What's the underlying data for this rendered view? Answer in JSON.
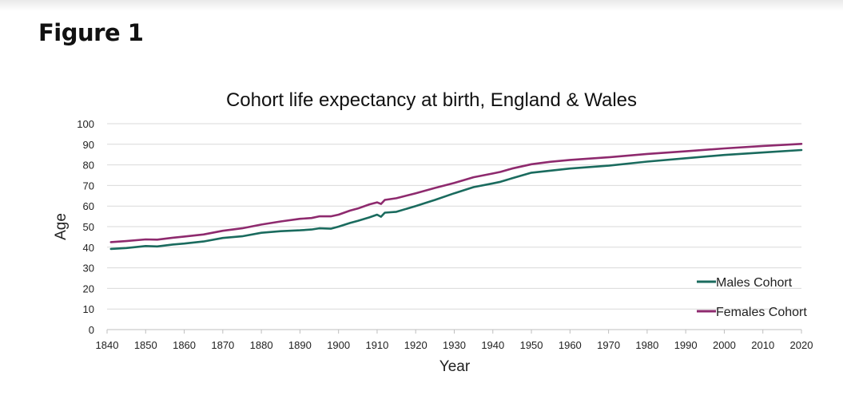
{
  "figure_label": "Figure 1",
  "chart_data": {
    "type": "line",
    "title": "Cohort life expectancy at birth, England & Wales",
    "xlabel": "Year",
    "ylabel": "Age",
    "xlim": [
      1840,
      2020
    ],
    "ylim": [
      0,
      100
    ],
    "x_ticks": [
      1840,
      1850,
      1860,
      1870,
      1880,
      1890,
      1900,
      1910,
      1920,
      1930,
      1940,
      1950,
      1960,
      1970,
      1980,
      1990,
      2000,
      2010,
      2020
    ],
    "y_ticks": [
      0,
      10,
      20,
      30,
      40,
      50,
      60,
      70,
      80,
      90,
      100
    ],
    "grid": "horizontal",
    "legend_position": "bottom-right",
    "x": [
      1841,
      1845,
      1850,
      1853,
      1857,
      1860,
      1865,
      1870,
      1875,
      1880,
      1885,
      1890,
      1893,
      1895,
      1898,
      1900,
      1903,
      1905,
      1908,
      1910,
      1911,
      1912,
      1915,
      1920,
      1925,
      1930,
      1935,
      1940,
      1942,
      1945,
      1950,
      1955,
      1960,
      1970,
      1980,
      1990,
      2000,
      2010,
      2020
    ],
    "series": [
      {
        "name": "Males Cohort",
        "color": "#1a6b5e",
        "values": [
          39.2,
          39.6,
          40.6,
          40.4,
          41.3,
          41.8,
          42.8,
          44.5,
          45.3,
          47.0,
          47.8,
          48.2,
          48.6,
          49.2,
          49.0,
          50.0,
          51.8,
          52.8,
          54.5,
          55.8,
          54.8,
          56.8,
          57.2,
          60.0,
          63.0,
          66.2,
          69.2,
          71.0,
          71.8,
          73.5,
          76.2,
          77.2,
          78.2,
          79.6,
          81.6,
          83.2,
          84.8,
          86.0,
          87.2
        ]
      },
      {
        "name": "Females Cohort",
        "color": "#8e2a6e",
        "values": [
          42.5,
          43.0,
          43.8,
          43.7,
          44.6,
          45.2,
          46.2,
          48.0,
          49.2,
          51.0,
          52.5,
          53.8,
          54.2,
          55.0,
          55.0,
          55.8,
          57.8,
          58.8,
          60.8,
          61.8,
          61.0,
          63.0,
          63.8,
          66.2,
          68.8,
          71.2,
          74.0,
          75.8,
          76.6,
          78.2,
          80.3,
          81.5,
          82.4,
          83.7,
          85.3,
          86.6,
          88.0,
          89.2,
          90.2
        ]
      }
    ]
  }
}
